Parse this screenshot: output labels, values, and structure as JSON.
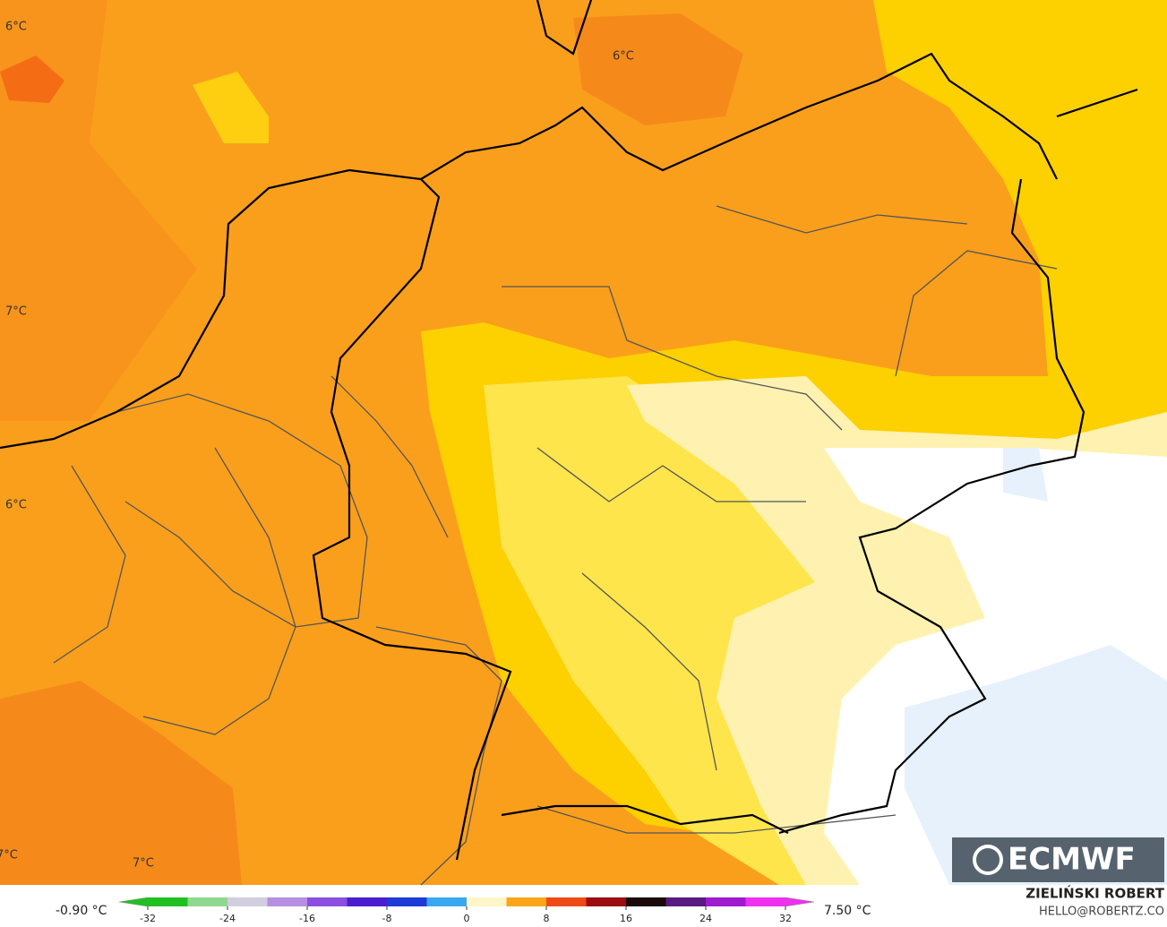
{
  "map": {
    "labels": [
      "6°C",
      "6°C",
      "7°C",
      "6°C",
      "7°C",
      "7°C"
    ]
  },
  "colorbar": {
    "min_label": "-0.90 °C",
    "max_label": "7.50 °C",
    "ticks": [
      -32,
      -24,
      -16,
      -8,
      0,
      8,
      16,
      24,
      32
    ],
    "colors": [
      "#21c021",
      "#8fd88f",
      "#d3cde0",
      "#b58fe0",
      "#8a4fe0",
      "#4a1ed0",
      "#1e3ad8",
      "#3aa8ee",
      "#fff6c8",
      "#fba51a",
      "#ef4a16",
      "#9a0e12",
      "#1a0a0a",
      "#5a1a80",
      "#a01ad0",
      "#f02ff0"
    ]
  },
  "credit": {
    "author": "ZIELIŃSKI ROBERT",
    "contact": "HELLO@ROBERTZ.CO"
  },
  "logo": "ECMWF"
}
